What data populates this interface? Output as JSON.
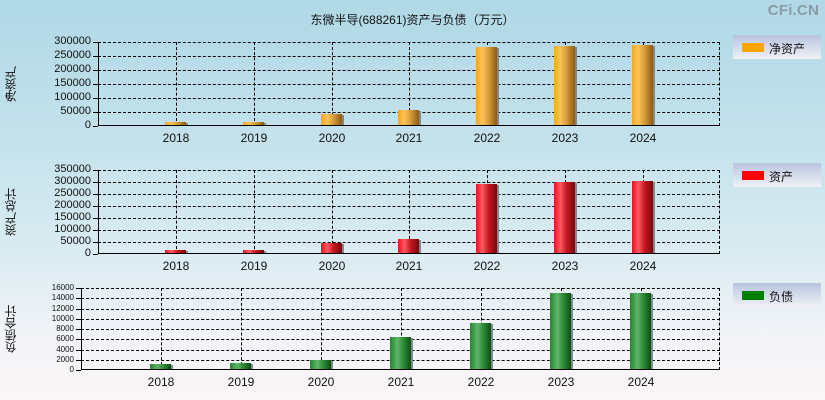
{
  "title": "东微半导(688261)资产与负债（万元）",
  "brand": "CFi.CN",
  "colors": {
    "net_assets": "#FFA500",
    "assets": "#FF0000",
    "liabilities": "#008000"
  },
  "charts": [
    {
      "ylabel": "净资产",
      "legend": "净资产",
      "yticks": [
        "300000",
        "250000",
        "200000",
        "150000",
        "100000",
        "50000",
        "0"
      ],
      "years": [
        "2018",
        "2019",
        "2020",
        "2021",
        "2022",
        "2023",
        "2024"
      ]
    },
    {
      "ylabel": "资产总计",
      "legend": "资产",
      "yticks": [
        "350000",
        "300000",
        "250000",
        "200000",
        "150000",
        "100000",
        "50000",
        "0"
      ],
      "years": [
        "2018",
        "2019",
        "2020",
        "2021",
        "2022",
        "2023",
        "2024"
      ]
    },
    {
      "ylabel": "负债合计",
      "legend": "负债",
      "yticks": [
        "16000",
        "14000",
        "12000",
        "10000",
        "8000",
        "6000",
        "4000",
        "2000",
        "0"
      ],
      "years": [
        "2018",
        "2019",
        "2020",
        "2021",
        "2022",
        "2023",
        "2024"
      ]
    }
  ],
  "chart_data": [
    {
      "type": "bar",
      "title": "东微半导(688261)资产与负债（万元）",
      "ylabel": "净资产",
      "categories": [
        "2018",
        "2019",
        "2020",
        "2021",
        "2022",
        "2023",
        "2024"
      ],
      "series": [
        {
          "name": "净资产",
          "values": [
            14000,
            14000,
            43000,
            57000,
            282000,
            287000,
            290000
          ]
        }
      ],
      "ylim": [
        0,
        300000
      ],
      "grid": true,
      "legend_position": "right"
    },
    {
      "type": "bar",
      "ylabel": "资产总计",
      "categories": [
        "2018",
        "2019",
        "2020",
        "2021",
        "2022",
        "2023",
        "2024"
      ],
      "series": [
        {
          "name": "资产",
          "values": [
            17000,
            17000,
            46000,
            63000,
            292000,
            300000,
            304000
          ]
        }
      ],
      "ylim": [
        0,
        350000
      ],
      "grid": true,
      "legend_position": "right"
    },
    {
      "type": "bar",
      "ylabel": "负债合计",
      "categories": [
        "2018",
        "2019",
        "2020",
        "2021",
        "2022",
        "2023",
        "2024"
      ],
      "series": [
        {
          "name": "负债",
          "values": [
            1200,
            1400,
            1950,
            6400,
            9200,
            15000,
            15000
          ]
        }
      ],
      "ylim": [
        0,
        16000
      ],
      "grid": true,
      "legend_position": "right"
    }
  ]
}
